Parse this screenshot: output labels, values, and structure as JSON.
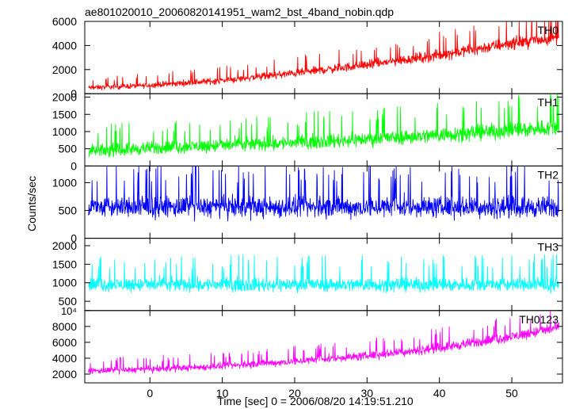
{
  "chart_data": {
    "type": "line",
    "title": "ae801020010_20060820141951_wam2_bst_4band_nobin.qdp",
    "xlabel": "Time [sec] 0 = 2006/08/20 14:19:51.210",
    "ylabel": "Counts/sec",
    "xlim": [
      -9,
      57
    ],
    "x_ticks": [
      0,
      10,
      20,
      30,
      40,
      50
    ],
    "x_tick_labels": [
      "0",
      "10",
      "20",
      "30",
      "40",
      "50"
    ],
    "data_x_range": [
      -8.5,
      56.5
    ],
    "panels": [
      {
        "name": "TH0",
        "color": "#ff0000",
        "ylim": [
          0,
          6000
        ],
        "y_ticks": [
          0,
          2000,
          4000,
          6000
        ],
        "y_tick_labels": [
          "0",
          "2000",
          "4000",
          "6000"
        ],
        "y_exponent_label": "",
        "series": {
          "x": [
            -8,
            0,
            10,
            20,
            30,
            40,
            50,
            56
          ],
          "mean": [
            500,
            700,
            1100,
            1700,
            2400,
            3200,
            4200,
            4600
          ],
          "spread": [
            300,
            330,
            400,
            470,
            550,
            650,
            750,
            800
          ]
        }
      },
      {
        "name": "TH1",
        "color": "#00ff00",
        "ylim": [
          0,
          2100
        ],
        "y_ticks": [
          0,
          500,
          1000,
          1500,
          2000
        ],
        "y_tick_labels": [
          "0",
          "500",
          "1000",
          "1500",
          "2000"
        ],
        "y_exponent_label": "",
        "series": {
          "x": [
            -8,
            0,
            10,
            20,
            30,
            40,
            50,
            56
          ],
          "mean": [
            430,
            520,
            600,
            680,
            780,
            900,
            1040,
            1120
          ],
          "spread": [
            260,
            270,
            280,
            290,
            300,
            320,
            340,
            350
          ]
        }
      },
      {
        "name": "TH2",
        "color": "#0000ff",
        "ylim": [
          0,
          1300
        ],
        "y_ticks": [
          0,
          500,
          1000
        ],
        "y_tick_labels": [
          "0",
          "500",
          "1000"
        ],
        "y_exponent_label": "",
        "series": {
          "x": [
            -8,
            56
          ],
          "mean": [
            560,
            560
          ],
          "spread": [
            270,
            270
          ]
        }
      },
      {
        "name": "TH3",
        "color": "#00ffff",
        "ylim": [
          250,
          2200
        ],
        "y_ticks": [
          500,
          1000,
          1500,
          2000
        ],
        "y_tick_labels": [
          "500",
          "1000",
          "1500",
          "2000"
        ],
        "y_exponent_label": "",
        "series": {
          "x": [
            -8,
            56
          ],
          "mean": [
            950,
            950
          ],
          "spread": [
            270,
            270
          ]
        }
      },
      {
        "name": "TH0123",
        "color": "#ff00ff",
        "ylim": [
          900,
          10000
        ],
        "y_ticks": [
          2000,
          4000,
          6000,
          8000,
          10000
        ],
        "y_tick_labels": [
          "2000",
          "4000",
          "6000",
          "8000",
          ""
        ],
        "y_exponent_label": "10⁴",
        "series": {
          "x": [
            -8,
            0,
            10,
            20,
            30,
            40,
            50,
            56
          ],
          "mean": [
            2400,
            2600,
            3000,
            3600,
            4300,
            5300,
            6700,
            7800
          ],
          "spread": [
            550,
            570,
            620,
            680,
            750,
            850,
            950,
            1000
          ]
        }
      }
    ],
    "grid": false,
    "legend": "panel labels top-right"
  }
}
